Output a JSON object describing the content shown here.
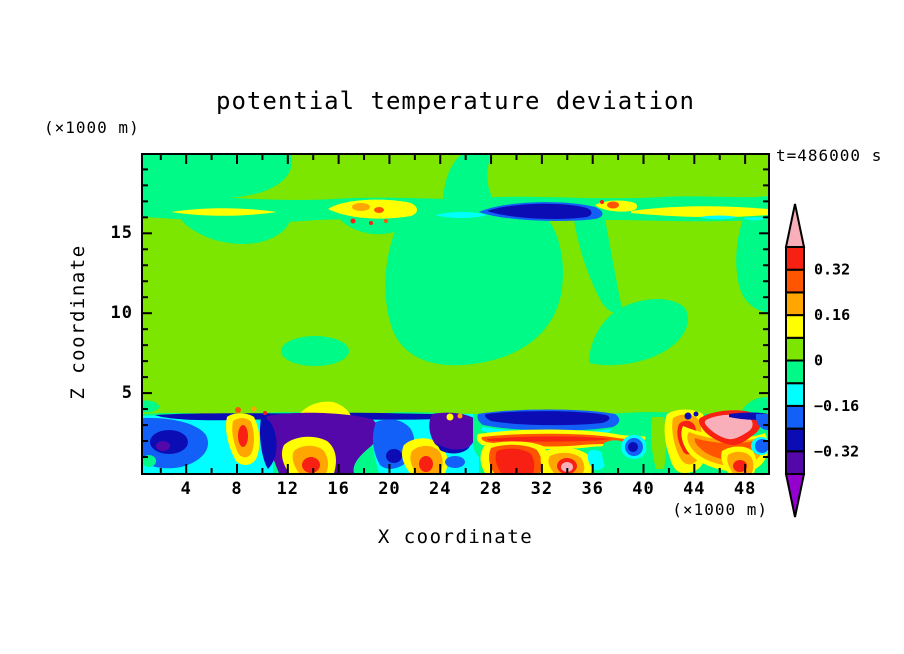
{
  "palette": {
    "background": "#FFFFFF",
    "frame": "#000000",
    "pink": "#F9AFB9",
    "red": "#F82012",
    "orangered": "#FF5500",
    "orange": "#FFA600",
    "yellow": "#FFFF00",
    "chartreuse": "#7CE600",
    "springgreen": "#00FA88",
    "cyan": "#00FFFF",
    "blue": "#1260F8",
    "navy": "#0C0CB4",
    "darkviolet": "#5408AA",
    "magenta": "#9400CE"
  },
  "chart_data": {
    "type": "heatmap",
    "subtype": "filled-contour",
    "title": "potential temperature deviation",
    "xlabel": "X coordinate",
    "ylabel": "Z coordinate",
    "x_units": "(×1000 m)",
    "y_units": "(×1000 m)",
    "time_annotation": "t=486000 s",
    "xlim": [
      0.6,
      49.8
    ],
    "ylim": [
      0,
      19.9
    ],
    "x_major_ticks": [
      4,
      8,
      12,
      16,
      20,
      24,
      28,
      32,
      36,
      40,
      44,
      48
    ],
    "x_minor_ticks": [
      2,
      6,
      10,
      14,
      18,
      22,
      26,
      30,
      34,
      38,
      42,
      46
    ],
    "y_major_ticks": [
      5,
      10,
      15
    ],
    "y_minor_ticks": [
      1,
      2,
      3,
      4,
      6,
      7,
      8,
      9,
      11,
      12,
      13,
      14,
      16,
      17,
      18,
      19
    ],
    "grid": "off",
    "legend_position": "right-colorbar",
    "colorbar": {
      "levels_bottom_to_top": [
        -0.4,
        -0.32,
        -0.24,
        -0.16,
        -0.08,
        0,
        0.08,
        0.16,
        0.24,
        0.32,
        0.4
      ],
      "band_colors_bottom_to_top": [
        "darkviolet",
        "navy",
        "blue",
        "cyan",
        "springgreen",
        "chartreuse",
        "yellow",
        "orange",
        "orangered",
        "red"
      ],
      "under_arrow_color": "magenta",
      "over_arrow_color": "pink",
      "tick_labels": [
        {
          "label": "0.32",
          "level": 0.32
        },
        {
          "label": "0.16",
          "level": 0.16
        },
        {
          "label": "0",
          "level": 0
        },
        {
          "label": "−0.16",
          "level": -0.16
        },
        {
          "label": "−0.32",
          "level": -0.32
        }
      ]
    },
    "regions": [
      {
        "z_range_km": [
          16,
          17.5
        ],
        "summary": "thin wave layer: warm streaks +0.08 to +0.24 with isolated spots above +0.24, and a strong cold pocket (−0.32 to −0.24, navy) near x = 24–33"
      },
      {
        "z_range_km": [
          3.5,
          16
        ],
        "summary": "near-zero field: irregular patches of −0.08 to 0 (spring green) embedded in a 0 to +0.08 (green) background"
      },
      {
        "z_range_km": [
          0,
          3.5
        ],
        "summary": "turbulent boundary layer: alternating warm plumes (up to > +0.40, pink cores) and cold downdrafts (below −0.40, purple), with thin −0.32 streaks along its top"
      }
    ]
  }
}
